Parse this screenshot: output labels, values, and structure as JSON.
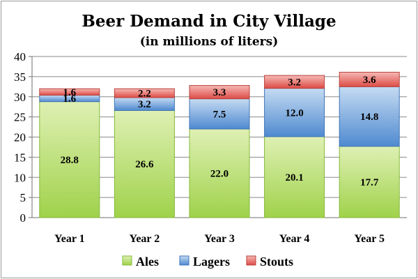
{
  "colors": {
    "ales_fill_top": "#dff0b4",
    "ales_fill_bottom": "#9fd24a",
    "ales_stroke": "#86b83a",
    "lagers_fill_top": "#c5dbf2",
    "lagers_fill_bottom": "#4f8ad0",
    "lagers_stroke": "#3f74b8",
    "stouts_fill_top": "#f6b9b5",
    "stouts_fill_bottom": "#dd4c46",
    "stouts_stroke": "#b8423c",
    "grid": "#8a8a8a",
    "axis": "#6f6f6f"
  },
  "chart_data": {
    "type": "bar",
    "stacked": true,
    "title": "Beer Demand in City Village",
    "subtitle": "(in millions of liters)",
    "categories": [
      "Year 1",
      "Year 2",
      "Year 3",
      "Year 4",
      "Year 5"
    ],
    "series": [
      {
        "name": "Ales",
        "values": [
          28.8,
          26.6,
          22.0,
          20.1,
          17.7
        ],
        "labels": [
          "28.8",
          "26.6",
          "22.0",
          "20.1",
          "17.7"
        ]
      },
      {
        "name": "Lagers",
        "values": [
          1.6,
          3.2,
          7.5,
          12.0,
          14.8
        ],
        "labels": [
          "1.6",
          "3.2",
          "7.5",
          "12.0",
          "14.8"
        ]
      },
      {
        "name": "Stouts",
        "values": [
          1.6,
          2.2,
          3.3,
          3.2,
          3.6
        ],
        "labels": [
          "1.6",
          "2.2",
          "3.3",
          "3.2",
          "3.6"
        ]
      }
    ],
    "ylim": [
      0,
      40
    ],
    "yticks": [
      0,
      5,
      10,
      15,
      20,
      25,
      30,
      35,
      40
    ],
    "xlabel": "",
    "ylabel": "",
    "grid": true,
    "legend_position": "bottom"
  }
}
